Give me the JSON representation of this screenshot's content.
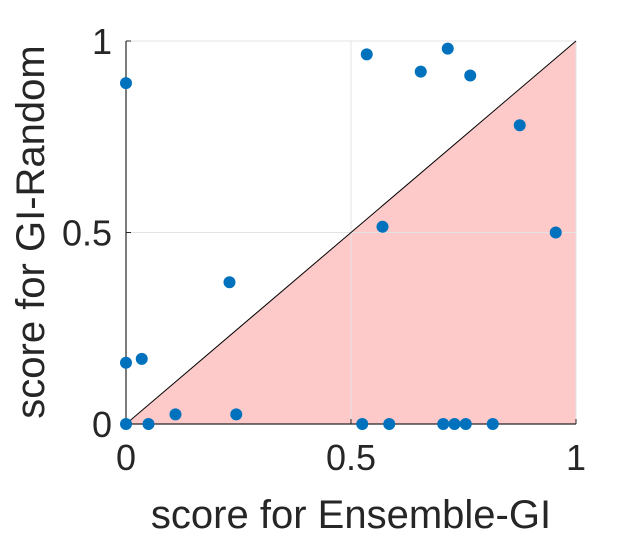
{
  "chart_data": {
    "type": "scatter",
    "title": "",
    "xlabel": "score for Ensemble-GI",
    "ylabel": "score for GI-Random",
    "xlim": [
      0,
      1
    ],
    "ylim": [
      0,
      1
    ],
    "xticks": [
      "0",
      "0.5",
      "1"
    ],
    "yticks": [
      "0",
      "0.5",
      "1"
    ],
    "grid": true,
    "diagonal_line": true,
    "shaded_region": "below-diagonal",
    "colors": {
      "points": "#0072BD",
      "shaded_region": "#FDC9C9",
      "diagonal": "#000000",
      "grid": "#E3E3E3",
      "axis": "#262626"
    },
    "points": [
      {
        "x": 0.0,
        "y": 0.89
      },
      {
        "x": 0.0,
        "y": 0.16
      },
      {
        "x": 0.035,
        "y": 0.17
      },
      {
        "x": 0.0,
        "y": 0.0
      },
      {
        "x": 0.05,
        "y": 0.0
      },
      {
        "x": 0.11,
        "y": 0.025
      },
      {
        "x": 0.23,
        "y": 0.37
      },
      {
        "x": 0.245,
        "y": 0.025
      },
      {
        "x": 0.525,
        "y": 0.0
      },
      {
        "x": 0.535,
        "y": 0.965
      },
      {
        "x": 0.57,
        "y": 0.515
      },
      {
        "x": 0.585,
        "y": 0.0
      },
      {
        "x": 0.655,
        "y": 0.92
      },
      {
        "x": 0.705,
        "y": 0.0
      },
      {
        "x": 0.715,
        "y": 0.98
      },
      {
        "x": 0.73,
        "y": 0.0
      },
      {
        "x": 0.755,
        "y": 0.0
      },
      {
        "x": 0.765,
        "y": 0.91
      },
      {
        "x": 0.815,
        "y": 0.0
      },
      {
        "x": 0.875,
        "y": 0.78
      },
      {
        "x": 0.955,
        "y": 0.5
      }
    ]
  }
}
